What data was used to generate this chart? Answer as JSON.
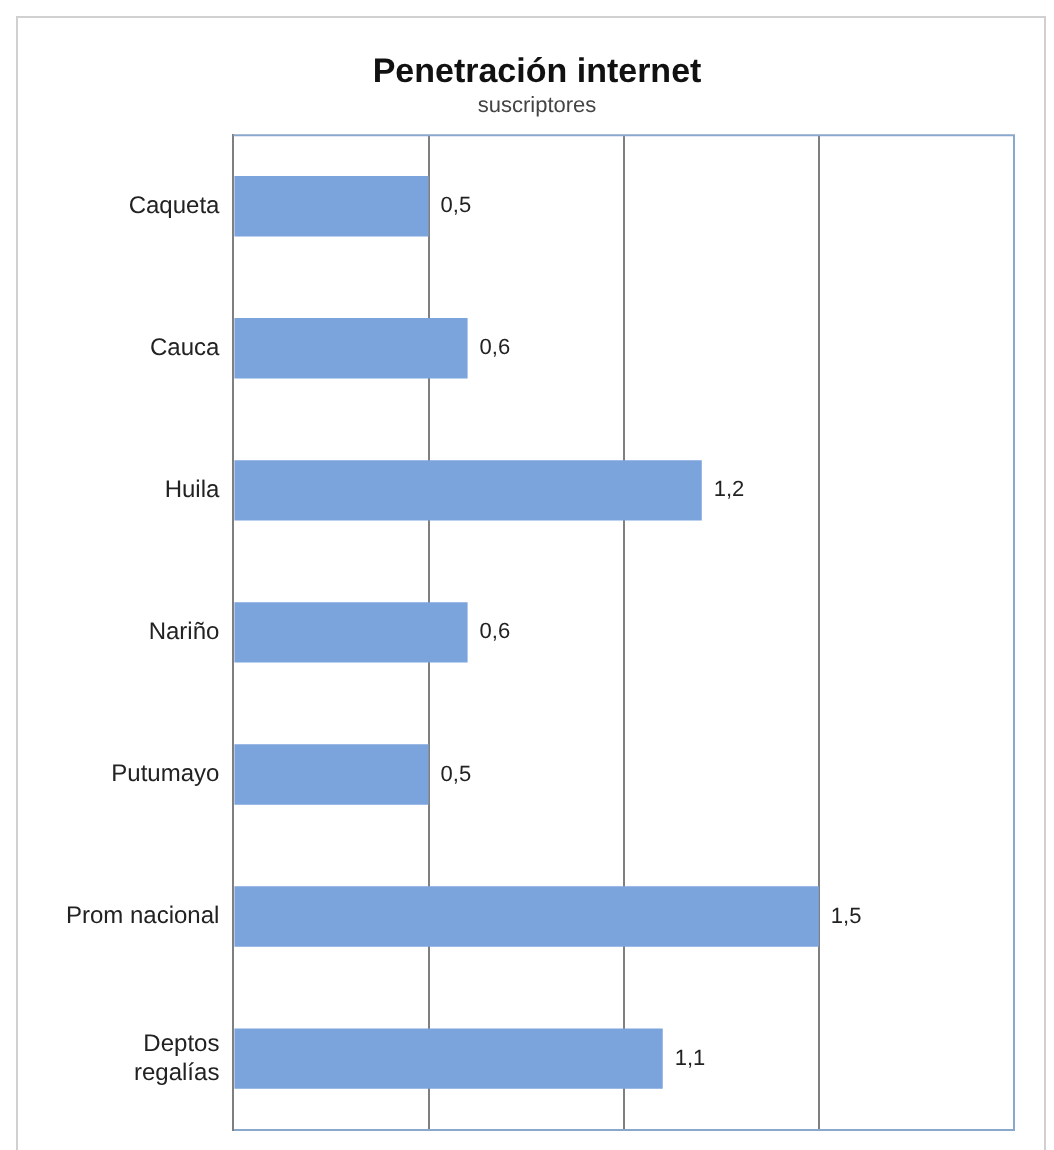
{
  "chart_data": {
    "type": "bar",
    "orientation": "horizontal",
    "title": "Penetración internet",
    "subtitle": "suscriptores",
    "categories": [
      "Caqueta",
      "Cauca",
      "Huila",
      "Nariño",
      "Putumayo",
      "Prom nacional",
      "Deptos regalías"
    ],
    "values": [
      0.5,
      0.6,
      1.2,
      0.6,
      0.5,
      1.5,
      1.1
    ],
    "value_labels": [
      "0,5",
      "0,6",
      "1,2",
      "0,6",
      "0,5",
      "1,5",
      "1,1"
    ],
    "color": "#7ba3dc",
    "xlim": [
      0,
      2
    ],
    "xticks": [
      {
        "value": 0,
        "label": null
      },
      {
        "value": 0.5,
        "label": null
      },
      {
        "value": 1,
        "label": null
      },
      {
        "value": 1.5,
        "label": null
      },
      {
        "value": 2,
        "label": null
      }
    ],
    "tick_labels": "y",
    "grid": "x",
    "legend": false
  }
}
